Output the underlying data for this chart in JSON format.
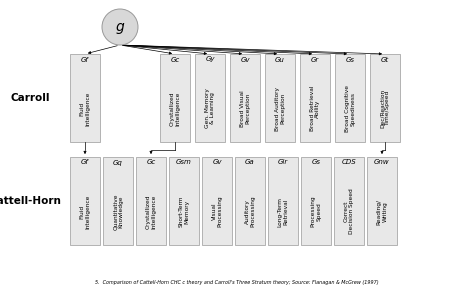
{
  "caption": "5.  Comparison of Cattell-Horn CHC c theory and Carroll's Three Stratum theory; Source: Flanagan & McGrew (1997)",
  "box_bg": "#e8e8e8",
  "box_edge": "#999999",
  "circle_bg": "#d8d8d8",
  "g_label": "g",
  "carroll_label": "Carroll",
  "cattellhorn_label": "Cattell-Horn",
  "carroll_boxes": [
    {
      "abbr": "Gf",
      "full": "Fluid\nIntelligence"
    },
    {
      "abbr": "Gc",
      "full": "Crystallized\nIntelligence"
    },
    {
      "abbr": "Gy",
      "full": "Gen. Memory\n& Learning"
    },
    {
      "abbr": "Gv",
      "full": "Broad Visual\nPerception"
    },
    {
      "abbr": "Gu",
      "full": "Broad Auditory\nPerception"
    },
    {
      "abbr": "Gr",
      "full": "Broad Retrieval\nAbility"
    },
    {
      "abbr": "Gs",
      "full": "Broad Cognitive\nSpeediness"
    },
    {
      "abbr": "Gt",
      "full": "Dec/Reaction\nTime/Speed"
    }
  ],
  "cattellhorn_boxes": [
    {
      "abbr": "Gf",
      "full": "Fluid\nIntelligence"
    },
    {
      "abbr": "Gq",
      "full": "Quantitative\nKnowledge"
    },
    {
      "abbr": "Gc",
      "full": "Crystallized\nIntelligence"
    },
    {
      "abbr": "Gsm",
      "full": "Short-Term\nMemory"
    },
    {
      "abbr": "Gv",
      "full": "Visual\nProcessing"
    },
    {
      "abbr": "Ga",
      "full": "Auditory\nProcessing"
    },
    {
      "abbr": "Glr",
      "full": "Long-Term\nRetrieval"
    },
    {
      "abbr": "Gs",
      "full": "Processing\nSpeed"
    },
    {
      "abbr": "CDS",
      "full": "Correct\nDecision Speed"
    },
    {
      "abbr": "Gnw",
      "full": "Reading/\nWriting"
    }
  ]
}
